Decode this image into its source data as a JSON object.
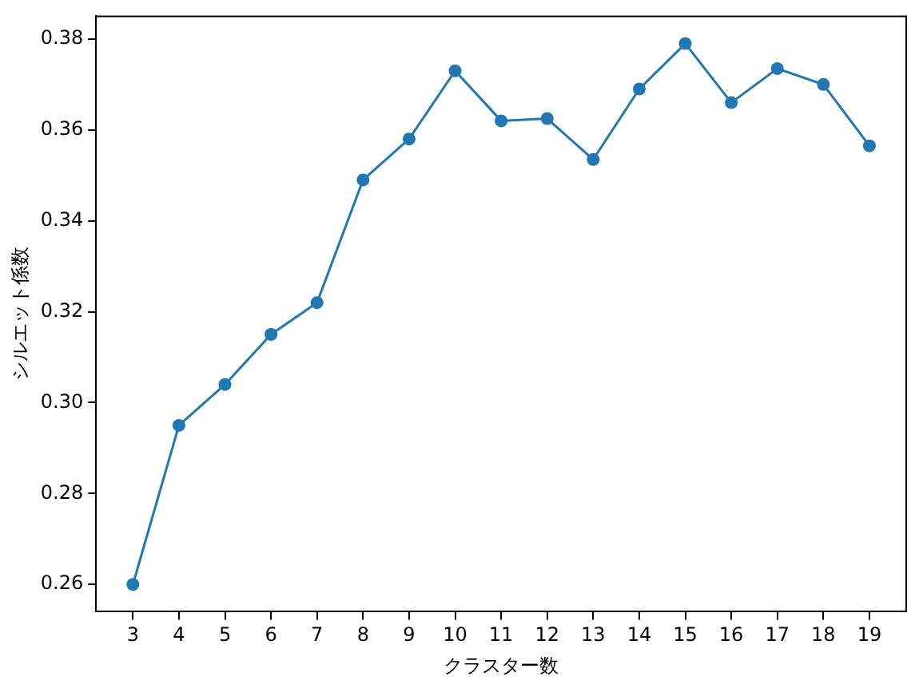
{
  "chart_data": {
    "type": "line",
    "xlabel": "クラスター数",
    "ylabel": "シルエット係数",
    "x": [
      3,
      4,
      5,
      6,
      7,
      8,
      9,
      10,
      11,
      12,
      13,
      14,
      15,
      16,
      17,
      18,
      19
    ],
    "series": [
      {
        "color": "#1f77b4",
        "values": [
          0.26,
          0.295,
          0.304,
          0.315,
          0.322,
          0.349,
          0.358,
          0.373,
          0.362,
          0.3625,
          0.3535,
          0.369,
          0.379,
          0.366,
          0.3735,
          0.37,
          0.3565
        ]
      }
    ],
    "xlim": [
      2.2,
      19.8
    ],
    "xticks": [
      3,
      4,
      5,
      6,
      7,
      8,
      9,
      10,
      11,
      12,
      13,
      14,
      15,
      16,
      17,
      18,
      19
    ],
    "ylim": [
      0.254,
      0.385
    ],
    "yticks": [
      {
        "value": 0.26,
        "label": "0.26"
      },
      {
        "value": 0.28,
        "label": "0.28"
      },
      {
        "value": 0.3,
        "label": "0.30"
      },
      {
        "value": 0.32,
        "label": "0.32"
      },
      {
        "value": 0.34,
        "label": "0.34"
      },
      {
        "value": 0.36,
        "label": "0.36"
      },
      {
        "value": 0.38,
        "label": "0.38"
      }
    ],
    "marker": "circle",
    "grid": false,
    "legend": false
  }
}
